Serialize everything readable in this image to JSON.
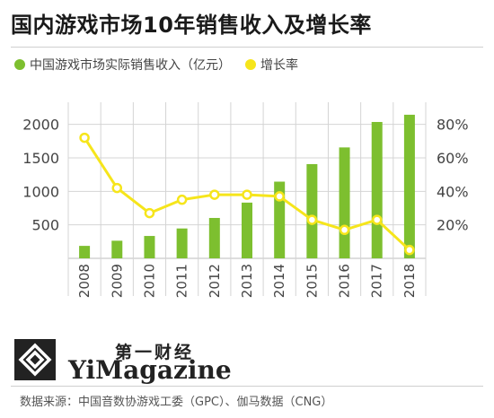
{
  "title": "国内游戏市场10年销售收入及增长率",
  "source": "数据来源：中国音数协游戏工委（GPC）、伽马数据（CNG）",
  "brand": {
    "cn": "第一财经",
    "en": "YiMagazine"
  },
  "colors": {
    "bar": "#7dbf2f",
    "line": "#f6e51b",
    "grid": "#d4d4d4",
    "text": "#444444"
  },
  "chart_data": {
    "type": "bar",
    "title": "国内游戏市场10年销售收入及增长率",
    "categories": [
      "2008",
      "2009",
      "2010",
      "2011",
      "2012",
      "2013",
      "2014",
      "2015",
      "2016",
      "2017",
      "2018"
    ],
    "series": [
      {
        "name": "中国游戏市场实际销售收入（亿元）",
        "type": "bar",
        "axis": "left",
        "values": [
          186,
          263,
          334,
          446,
          603,
          832,
          1145,
          1407,
          1656,
          2036,
          2144
        ]
      },
      {
        "name": "增长率",
        "type": "line",
        "axis": "right",
        "values": [
          72,
          42,
          27,
          35,
          38,
          38,
          37,
          23,
          17,
          23,
          5
        ]
      }
    ],
    "ylim": [
      0,
      2250
    ],
    "y_ticks": [
      "500",
      "1000",
      "1500",
      "2000"
    ],
    "y2lim": [
      0,
      90
    ],
    "y2_ticks": [
      "20%",
      "40%",
      "60%",
      "80%"
    ],
    "grid": true,
    "legend": "top-left"
  }
}
